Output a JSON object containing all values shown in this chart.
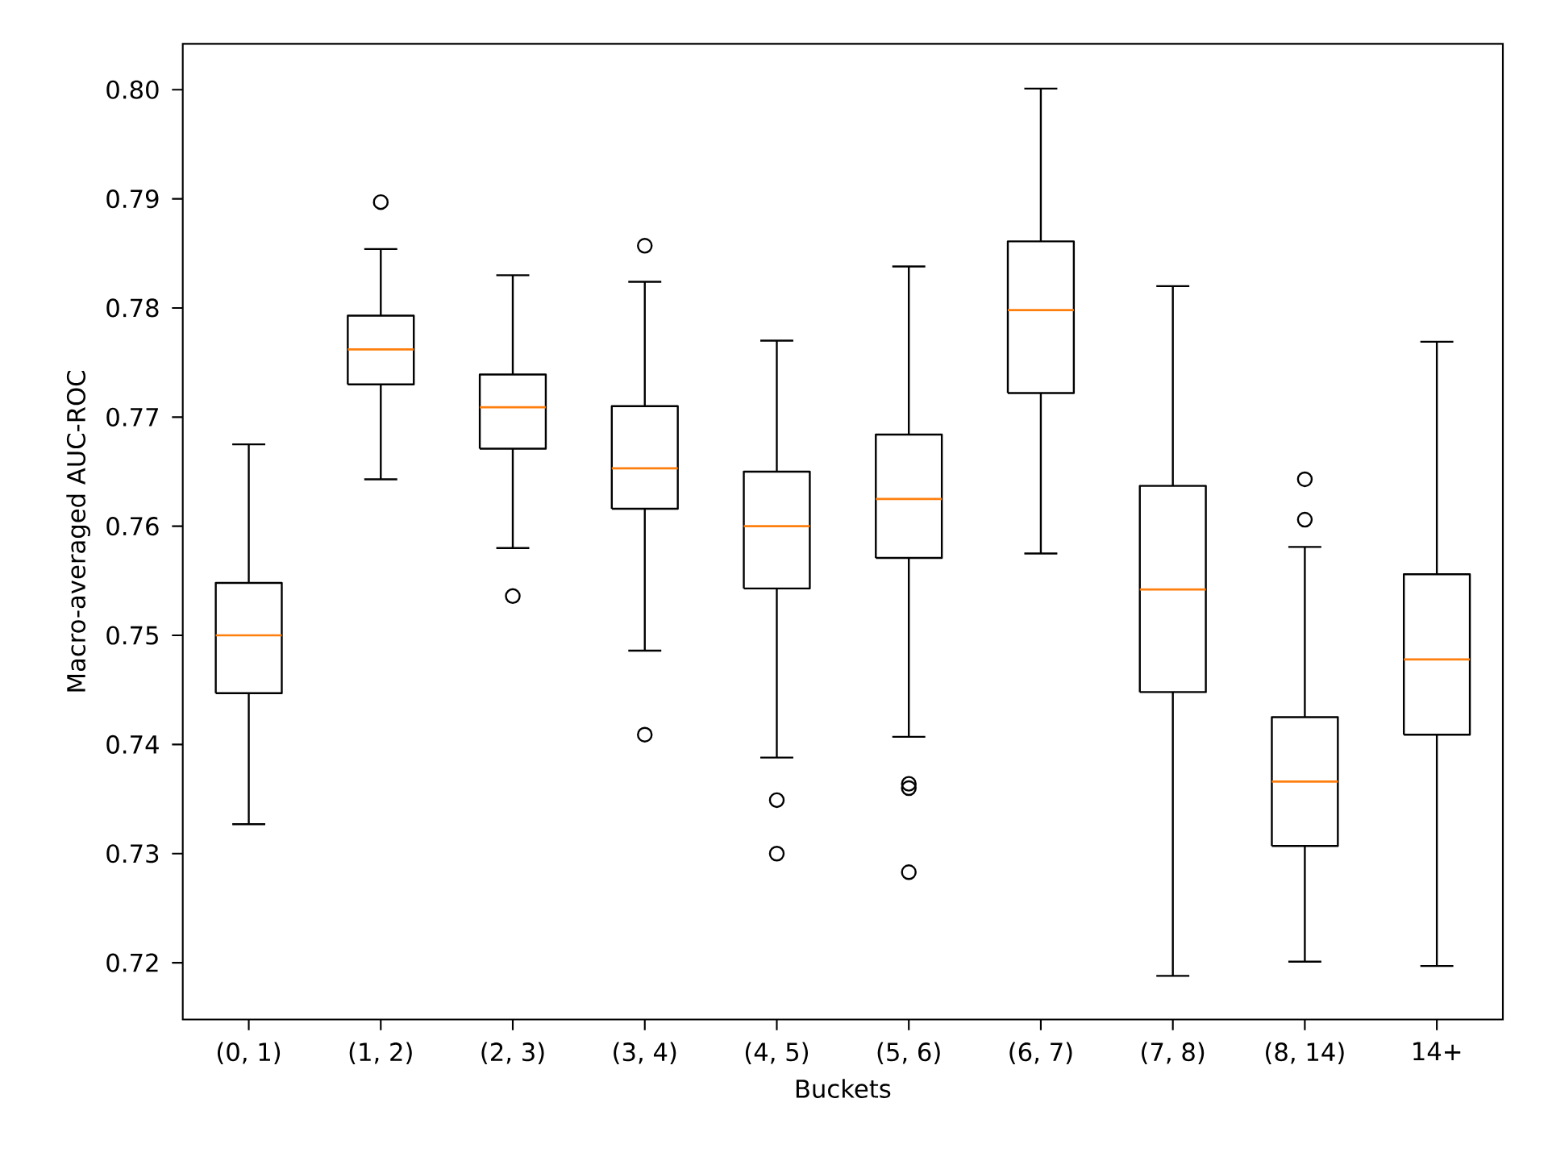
{
  "chart_data": {
    "type": "box",
    "xlabel": "Buckets",
    "ylabel": "Macro-averaged AUC-ROC",
    "categories": [
      "(0, 1)",
      "(1, 2)",
      "(2, 3)",
      "(3, 4)",
      "(4, 5)",
      "(5, 6)",
      "(6, 7)",
      "(7, 8)",
      "(8, 14)",
      "14+"
    ],
    "boxes": [
      {
        "low": 0.7327,
        "q1": 0.7447,
        "median": 0.75,
        "q3": 0.7548,
        "high": 0.7675
      },
      {
        "low": 0.7643,
        "q1": 0.773,
        "median": 0.7762,
        "q3": 0.7793,
        "high": 0.7854,
        "outliers": [
          0.7897
        ]
      },
      {
        "low": 0.758,
        "q1": 0.7671,
        "median": 0.7709,
        "q3": 0.7739,
        "high": 0.783,
        "outliers": [
          0.7536
        ]
      },
      {
        "low": 0.7486,
        "q1": 0.7616,
        "median": 0.7653,
        "q3": 0.771,
        "high": 0.7824,
        "outliers": [
          0.7857,
          0.7409
        ]
      },
      {
        "low": 0.7388,
        "q1": 0.7543,
        "median": 0.76,
        "q3": 0.765,
        "high": 0.777,
        "outliers": [
          0.7349,
          0.73
        ]
      },
      {
        "low": 0.7407,
        "q1": 0.7571,
        "median": 0.7625,
        "q3": 0.7684,
        "high": 0.7838,
        "outliers": [
          0.7364,
          0.736,
          0.7283
        ]
      },
      {
        "low": 0.7575,
        "q1": 0.7722,
        "median": 0.7798,
        "q3": 0.7861,
        "high": 0.8001
      },
      {
        "low": 0.7188,
        "q1": 0.7448,
        "median": 0.7542,
        "q3": 0.7637,
        "high": 0.782
      },
      {
        "low": 0.7201,
        "q1": 0.7307,
        "median": 0.7366,
        "q3": 0.7425,
        "high": 0.7581,
        "outliers": [
          0.7643,
          0.7606
        ]
      },
      {
        "low": 0.7197,
        "q1": 0.7409,
        "median": 0.7478,
        "q3": 0.7556,
        "high": 0.7769
      }
    ],
    "ylim": [
      0.7148,
      0.8042
    ],
    "yticks": [
      0.72,
      0.73,
      0.74,
      0.75,
      0.76,
      0.77,
      0.78,
      0.79,
      {
        "value": 0.8,
        "label": "0.80"
      }
    ],
    "marker": "circle",
    "grid": false
  }
}
